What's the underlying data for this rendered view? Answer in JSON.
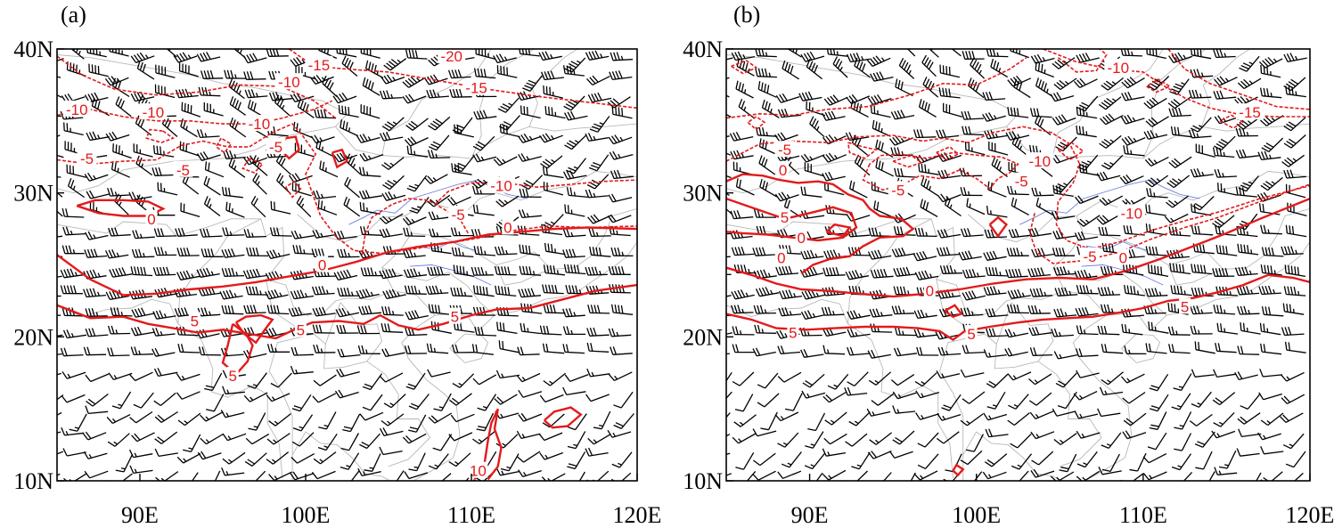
{
  "panels": [
    {
      "label": "(a)",
      "lon_range": [
        85,
        120
      ],
      "lat_range": [
        10,
        40
      ],
      "x_ticks": [
        {
          "lon": 90,
          "label": "90E"
        },
        {
          "lon": 100,
          "label": "100E"
        },
        {
          "lon": 110,
          "label": "110E"
        },
        {
          "lon": 120,
          "label": "120E"
        }
      ],
      "y_ticks": [
        {
          "lat": 40,
          "label": "40N"
        },
        {
          "lat": 30,
          "label": "30N"
        },
        {
          "lat": 20,
          "label": "20N"
        },
        {
          "lat": 10,
          "label": "10N"
        }
      ],
      "contour_labels": [
        {
          "text": "-20",
          "lon": 108.8,
          "lat": 39.5
        },
        {
          "text": "-15",
          "lon": 100.8,
          "lat": 38.9
        },
        {
          "text": "-15",
          "lon": 110.3,
          "lat": 37.3
        },
        {
          "text": "-10",
          "lon": 99.0,
          "lat": 37.7
        },
        {
          "text": "-10",
          "lon": 86.2,
          "lat": 35.8
        },
        {
          "text": "-10",
          "lon": 90.8,
          "lat": 35.6
        },
        {
          "text": "-10",
          "lon": 97.2,
          "lat": 34.8
        },
        {
          "text": "-10",
          "lon": 111.8,
          "lat": 30.5
        },
        {
          "text": "-5",
          "lon": 86.8,
          "lat": 32.4
        },
        {
          "text": "-5",
          "lon": 92.6,
          "lat": 31.6
        },
        {
          "text": "-5",
          "lon": 98.2,
          "lat": 33.2
        },
        {
          "text": "-5",
          "lon": 109.2,
          "lat": 28.5
        },
        {
          "text": "0",
          "lon": 90.7,
          "lat": 28.2
        },
        {
          "text": "0",
          "lon": 101.0,
          "lat": 25.0
        },
        {
          "text": "0",
          "lon": 112.2,
          "lat": 27.6
        },
        {
          "text": "5",
          "lon": 93.3,
          "lat": 21.1
        },
        {
          "text": "5",
          "lon": 99.7,
          "lat": 20.5
        },
        {
          "text": "5",
          "lon": 109.0,
          "lat": 21.4
        },
        {
          "text": "5",
          "lon": 95.6,
          "lat": 17.3
        },
        {
          "text": "10",
          "lon": 110.4,
          "lat": 10.7
        }
      ]
    },
    {
      "label": "(b)",
      "lon_range": [
        85,
        120
      ],
      "lat_range": [
        10,
        40
      ],
      "x_ticks": [
        {
          "lon": 90,
          "label": "90E"
        },
        {
          "lon": 100,
          "label": "100E"
        },
        {
          "lon": 110,
          "label": "110E"
        },
        {
          "lon": 120,
          "label": "120E"
        }
      ],
      "y_ticks": [
        {
          "lat": 40,
          "label": "40N"
        },
        {
          "lat": 30,
          "label": "30N"
        },
        {
          "lat": 20,
          "label": "20N"
        },
        {
          "lat": 10,
          "label": "10N"
        }
      ],
      "contour_labels": [
        {
          "text": "-10",
          "lon": 108.5,
          "lat": 38.7
        },
        {
          "text": "-15",
          "lon": 116.4,
          "lat": 35.6
        },
        {
          "text": "-5",
          "lon": 88.5,
          "lat": 33.0
        },
        {
          "text": "-10",
          "lon": 103.8,
          "lat": 32.2
        },
        {
          "text": "-5",
          "lon": 95.3,
          "lat": 30.2
        },
        {
          "text": "-5",
          "lon": 102.7,
          "lat": 30.8
        },
        {
          "text": "-10",
          "lon": 109.3,
          "lat": 28.6
        },
        {
          "text": "-5",
          "lon": 106.8,
          "lat": 25.6
        },
        {
          "text": "0",
          "lon": 88.4,
          "lat": 31.6
        },
        {
          "text": "5",
          "lon": 88.5,
          "lat": 28.3
        },
        {
          "text": "0",
          "lon": 89.5,
          "lat": 26.9
        },
        {
          "text": "0",
          "lon": 88.3,
          "lat": 25.5
        },
        {
          "text": "0",
          "lon": 97.2,
          "lat": 23.2
        },
        {
          "text": "0",
          "lon": 108.8,
          "lat": 25.5
        },
        {
          "text": "5",
          "lon": 89.0,
          "lat": 20.3
        },
        {
          "text": "5",
          "lon": 99.7,
          "lat": 20.2
        },
        {
          "text": "5",
          "lon": 112.5,
          "lat": 22.1
        }
      ]
    }
  ],
  "colors": {
    "contour": "#e31a1c",
    "barb": "#000000",
    "coastline": "#b8b8b8",
    "river": "#6a7fe0"
  }
}
